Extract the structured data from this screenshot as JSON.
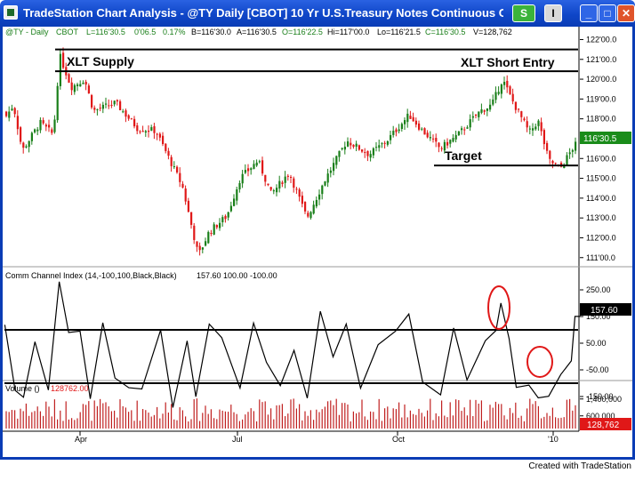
{
  "window": {
    "title": "TradeStation Chart Analysis - @TY Daily [CBOT] 10 Yr U.S.Treasury Notes Continuous Contrac...",
    "buttons": {
      "s": "S",
      "i": "I",
      "minimize": "_",
      "maximize": "□",
      "close": "✕"
    },
    "colors": {
      "titlebar": "#0a3cb5",
      "up_bar": "#1a7f1a",
      "down_bar": "#e01818"
    }
  },
  "price_pane": {
    "header": {
      "symbol": "@TY - Daily",
      "exchange": "CBOT",
      "last": "L=116'30.5",
      "change": "0'06.5",
      "pct": "0.17%",
      "bid": "B=116'30.0",
      "ask": "A=116'30.5",
      "open": "O=116'22.5",
      "high": "Hi=117'00.0",
      "low": "Lo=116'21.5",
      "close": "C=116'30.5",
      "volume": "V=128,762"
    },
    "axis_labels": [
      "122'00.0",
      "121'00.0",
      "120'00.0",
      "119'00.0",
      "118'00.0",
      "117'00.0",
      "116'00.0",
      "115'00.0",
      "114'00.0",
      "113'00.0",
      "112'00.0",
      "111'00.0"
    ],
    "axis_values": [
      122,
      121,
      120,
      119,
      118,
      117,
      116,
      115,
      114,
      113,
      112,
      111
    ],
    "last_price_badge": "116'30.5",
    "last_price_value": 116.95,
    "annotations": {
      "supply": "XLT Supply",
      "short_entry": "XLT Short Entry",
      "target": "Target"
    },
    "levels": {
      "supply_top": 121.5,
      "supply_bottom": 120.4,
      "target": 115.65
    }
  },
  "cci_pane": {
    "header_name": "Comm Channel Index (14,-100,100,Black,Black)",
    "header_values": "157.60   100.00   -100.00",
    "axis_labels": [
      "250.00",
      "150.00",
      "50.00",
      "-50.00",
      "-150.00"
    ],
    "axis_values": [
      250,
      150,
      50,
      -50,
      -150
    ],
    "value_badge": "157.60",
    "value": 157.6,
    "upper_level": 100,
    "lower_level": -100
  },
  "volume_pane": {
    "header_name": "Volume ()",
    "header_value": "128762.00",
    "axis_labels": [
      "1,400,000",
      "600,000"
    ],
    "axis_values": [
      1400000,
      600000
    ],
    "value_badge": "128,762"
  },
  "x_axis": {
    "labels": [
      "Apr",
      "Jul",
      "Oct",
      "'10"
    ]
  },
  "footer": "Created with TradeStation"
}
